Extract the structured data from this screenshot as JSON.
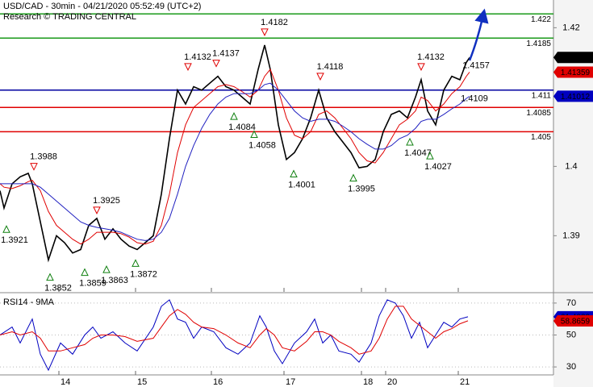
{
  "chart_data": [
    {
      "type": "line",
      "title": "USD/CAD - 30min - 04/21/2020 05:52:49 (UTC+2)",
      "subtitle": "Research © TRADING CENTRAL",
      "xlim": [
        0,
        686
      ],
      "ylim": [
        1.3819,
        1.424
      ],
      "yticks": [
        1.39,
        1.4,
        1.41,
        1.42
      ],
      "xticks": [
        {
          "value": 73,
          "label": "14"
        },
        {
          "value": 168,
          "label": "15"
        },
        {
          "value": 262,
          "label": "16"
        },
        {
          "value": 352,
          "label": "17"
        },
        {
          "value": 448,
          "label": "18"
        },
        {
          "value": 478,
          "label": "20"
        },
        {
          "value": 568,
          "label": "21"
        }
      ],
      "x": [
        0,
        5,
        15,
        25,
        35,
        40,
        50,
        60,
        70,
        80,
        90,
        100,
        110,
        120,
        130,
        140,
        150,
        160,
        170,
        180,
        190,
        200,
        210,
        220,
        230,
        240,
        250,
        260,
        270,
        280,
        290,
        300,
        310,
        320,
        328,
        335,
        345,
        355,
        365,
        375,
        385,
        395,
        405,
        415,
        425,
        435,
        445,
        455,
        465,
        475,
        485,
        495,
        505,
        515,
        522,
        530,
        540,
        550,
        560,
        570,
        578,
        582
      ],
      "series": [
        {
          "color": "#000000",
          "values": [
            1.3965,
            1.394,
            1.3975,
            1.3985,
            1.399,
            1.3975,
            1.392,
            1.3865,
            1.39,
            1.389,
            1.3875,
            1.388,
            1.3915,
            1.3925,
            1.3895,
            1.391,
            1.3895,
            1.3885,
            1.388,
            1.389,
            1.39,
            1.396,
            1.404,
            1.411,
            1.409,
            1.4115,
            1.411,
            1.412,
            1.413,
            1.4115,
            1.411,
            1.41,
            1.409,
            1.414,
            1.4175,
            1.414,
            1.406,
            1.401,
            1.402,
            1.404,
            1.407,
            1.411,
            1.407,
            1.405,
            1.4035,
            1.402,
            1.3998,
            1.4,
            1.401,
            1.405,
            1.4075,
            1.408,
            1.407,
            1.41,
            1.4125,
            1.408,
            1.406,
            1.411,
            1.413,
            1.4125,
            1.415,
            1.4157
          ]
        },
        {
          "color": "#e00000",
          "values": [
            1.3975,
            1.397,
            1.3968,
            1.3972,
            1.3978,
            1.398,
            1.3965,
            1.3935,
            1.3915,
            1.3905,
            1.3895,
            1.3888,
            1.3895,
            1.3905,
            1.3905,
            1.3905,
            1.3903,
            1.3898,
            1.389,
            1.3888,
            1.3892,
            1.3915,
            1.396,
            1.402,
            1.406,
            1.4085,
            1.4095,
            1.4105,
            1.4115,
            1.4118,
            1.4115,
            1.4108,
            1.41,
            1.411,
            1.413,
            1.414,
            1.411,
            1.407,
            1.4045,
            1.404,
            1.405,
            1.4075,
            1.408,
            1.407,
            1.4055,
            1.404,
            1.402,
            1.4008,
            1.4005,
            1.402,
            1.404,
            1.406,
            1.4068,
            1.408,
            1.41,
            1.4095,
            1.408,
            1.409,
            1.4105,
            1.4115,
            1.413,
            1.4136
          ]
        },
        {
          "color": "#2020c0",
          "values": [
            1.3975,
            1.3975,
            1.3975,
            1.3975,
            1.3975,
            1.3975,
            1.397,
            1.396,
            1.395,
            1.394,
            1.393,
            1.392,
            1.3915,
            1.3912,
            1.391,
            1.3908,
            1.3905,
            1.39,
            1.3895,
            1.3893,
            1.3895,
            1.3905,
            1.3925,
            1.396,
            1.4,
            1.403,
            1.4055,
            1.4075,
            1.409,
            1.41,
            1.4105,
            1.4105,
            1.4105,
            1.411,
            1.4118,
            1.412,
            1.411,
            1.4095,
            1.408,
            1.407,
            1.4065,
            1.4068,
            1.4068,
            1.4065,
            1.4058,
            1.405,
            1.404,
            1.4032,
            1.4025,
            1.4025,
            1.403,
            1.404,
            1.4045,
            1.4055,
            1.4065,
            1.4068,
            1.4068,
            1.4075,
            1.4083,
            1.409,
            1.4098,
            1.4101
          ]
        }
      ],
      "levels": [
        {
          "value": 1.422,
          "color": "#1a9a1a"
        },
        {
          "value": 1.4185,
          "color": "#1a9a1a"
        },
        {
          "value": 1.411,
          "color": "#0000a0"
        },
        {
          "value": 1.4085,
          "color": "#e00000"
        },
        {
          "value": 1.405,
          "color": "#e00000"
        }
      ],
      "annotations": [
        {
          "x": 42,
          "value": 1.3988,
          "kind": "high"
        },
        {
          "x": 8,
          "value": 1.3921,
          "kind": "low"
        },
        {
          "x": 62,
          "value": 1.3852,
          "kind": "low"
        },
        {
          "x": 105,
          "value": 1.3859,
          "kind": "low"
        },
        {
          "x": 132,
          "value": 1.3863,
          "kind": "low"
        },
        {
          "x": 120,
          "value": 1.3925,
          "kind": "high"
        },
        {
          "x": 168,
          "value": 1.3872,
          "kind": "low"
        },
        {
          "x": 233,
          "value": 1.4132,
          "kind": "high"
        },
        {
          "x": 268,
          "value": 1.4137,
          "kind": "high"
        },
        {
          "x": 290,
          "value": 1.4084,
          "kind": "low"
        },
        {
          "x": 328,
          "value": 1.4182,
          "kind": "high"
        },
        {
          "x": 315,
          "value": 1.4058,
          "kind": "low"
        },
        {
          "x": 364,
          "value": 1.4001,
          "kind": "low"
        },
        {
          "x": 397,
          "value": 1.4118,
          "kind": "high"
        },
        {
          "x": 438,
          "value": 1.3995,
          "kind": "low"
        },
        {
          "x": 522,
          "value": 1.4132,
          "kind": "high"
        },
        {
          "x": 508,
          "value": 1.4047,
          "kind": "low"
        },
        {
          "x": 533,
          "value": 1.4027,
          "kind": "low"
        },
        {
          "x": 588,
          "value": 1.4109,
          "kind": "label"
        },
        {
          "x": 590,
          "value": 1.4157,
          "kind": "label"
        }
      ],
      "price_tags": [
        {
          "value": 1.41572,
          "color": "#000000"
        },
        {
          "value": 1.41359,
          "color": "#e00000"
        },
        {
          "value": 1.41012,
          "color": "#0000c0"
        }
      ]
    },
    {
      "type": "line",
      "title": "RSI14 - 9MA",
      "xlim": [
        0,
        686
      ],
      "ylim": [
        25,
        75
      ],
      "yticks": [
        30,
        50,
        70
      ],
      "x": [
        0,
        15,
        25,
        40,
        50,
        60,
        75,
        90,
        105,
        115,
        125,
        140,
        155,
        170,
        190,
        200,
        210,
        220,
        230,
        240,
        250,
        265,
        280,
        295,
        310,
        322,
        330,
        340,
        350,
        365,
        380,
        390,
        400,
        410,
        420,
        435,
        445,
        460,
        470,
        480,
        490,
        500,
        510,
        520,
        530,
        540,
        550,
        560,
        570,
        580
      ],
      "series": [
        {
          "color": "#0000c0",
          "values": [
            50,
            55,
            45,
            60,
            38,
            28,
            45,
            38,
            50,
            55,
            48,
            52,
            45,
            40,
            55,
            68,
            72,
            60,
            58,
            48,
            55,
            52,
            42,
            38,
            45,
            62,
            55,
            40,
            32,
            45,
            52,
            60,
            45,
            50,
            40,
            38,
            33,
            45,
            62,
            72,
            70,
            62,
            48,
            58,
            42,
            50,
            58,
            55,
            60,
            61.4
          ]
        },
        {
          "color": "#e00000",
          "values": [
            50,
            52,
            50,
            52,
            48,
            40,
            40,
            42,
            44,
            48,
            50,
            50,
            49,
            46,
            48,
            55,
            62,
            66,
            63,
            58,
            55,
            54,
            50,
            45,
            42,
            50,
            54,
            50,
            42,
            40,
            46,
            52,
            52,
            50,
            46,
            42,
            38,
            40,
            48,
            60,
            68,
            68,
            60,
            56,
            52,
            48,
            52,
            54,
            57,
            58.9
          ]
        }
      ],
      "price_tags": [
        {
          "value": 61.4033,
          "color": "#0000c0"
        },
        {
          "value": 58.8659,
          "color": "#e00000"
        }
      ]
    }
  ]
}
